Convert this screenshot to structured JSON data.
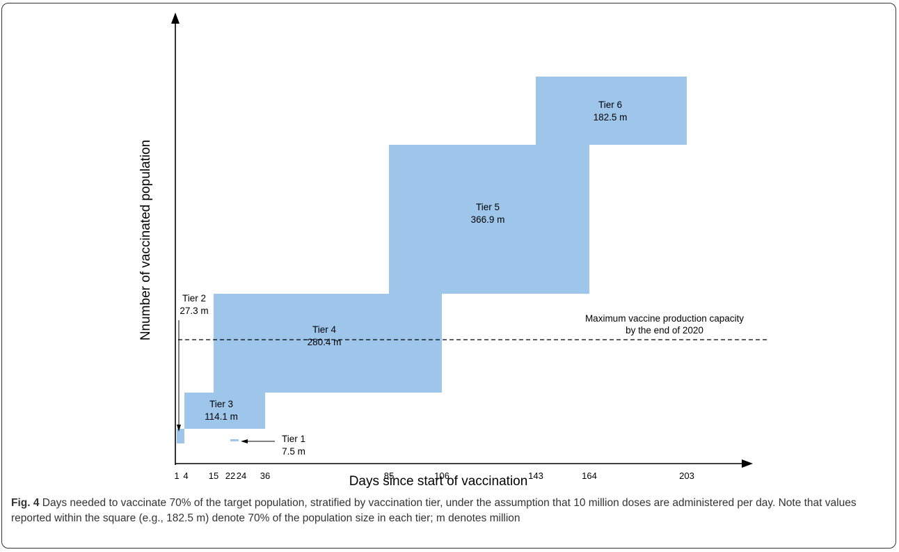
{
  "figure": {
    "label": "Fig. 4",
    "caption": "Days needed to vaccinate 70% of the target population, stratified by vaccination tier, under the assumption that 10 million doses are administered per day. Note that values reported within the square (e.g., 182.5 m) denote 70% of the population size in each tier; m denotes million"
  },
  "chart_data": {
    "type": "bar",
    "xlabel": "Days since start of vaccination",
    "ylabel": "Nnumber of vaccinated population",
    "x_ticks": [
      1,
      4,
      15,
      22,
      24,
      36,
      85,
      106,
      143,
      164,
      203
    ],
    "tiers": [
      {
        "name": "Tier 1",
        "population": "7.5 m",
        "start_day": 22,
        "end_day": 24
      },
      {
        "name": "Tier 2",
        "population": "27.3 m",
        "start_day": 1,
        "end_day": 4
      },
      {
        "name": "Tier 3",
        "population": "114.1 m",
        "start_day": 4,
        "end_day": 36
      },
      {
        "name": "Tier 4",
        "population": "280.4 m",
        "start_day": 15,
        "end_day": 106
      },
      {
        "name": "Tier 5",
        "population": "366.9 m",
        "start_day": 85,
        "end_day": 164
      },
      {
        "name": "Tier 6",
        "population": "182.5 m",
        "start_day": 143,
        "end_day": 203
      }
    ],
    "reference_line": {
      "label_line1": "Maximum vaccine production capacity",
      "label_line2": "by the end of 2020",
      "style": "dashed"
    },
    "colors": {
      "bar": "#9ec6eb",
      "axis": "#000000"
    },
    "grid": false
  }
}
